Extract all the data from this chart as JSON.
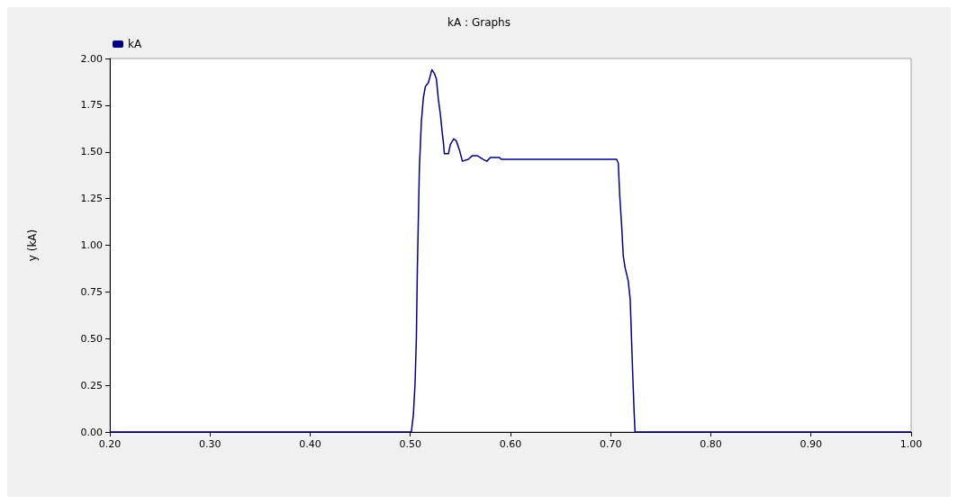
{
  "chart_data": {
    "type": "line",
    "title": "kA : Graphs",
    "ylabel": "y (kA)",
    "legend": "top left",
    "grid": false,
    "marker": "none",
    "line_style": "solid",
    "xlim": [
      0.2,
      1.0
    ],
    "xticks": [
      {
        "value": 0.2,
        "label": "0.20"
      },
      {
        "value": 0.3,
        "label": "0.30"
      },
      {
        "value": 0.4,
        "label": "0.40"
      },
      {
        "value": 0.5,
        "label": "0.50"
      },
      {
        "value": 0.6,
        "label": "0.60"
      },
      {
        "value": 0.7,
        "label": "0.70"
      },
      {
        "value": 0.8,
        "label": "0.80"
      },
      {
        "value": 0.9,
        "label": "0.90"
      },
      {
        "value": 1.0,
        "label": "1.00"
      }
    ],
    "ylim": [
      0,
      2
    ],
    "yticks": [
      {
        "value": 0,
        "label": "0.00"
      },
      {
        "value": 0.25,
        "label": "0.25"
      },
      {
        "value": 0.5,
        "label": "0.50"
      },
      {
        "value": 0.75,
        "label": "0.75"
      },
      {
        "value": 1,
        "label": "1.00"
      },
      {
        "value": 1.25,
        "label": "1.25"
      },
      {
        "value": 1.5,
        "label": "1.50"
      },
      {
        "value": 1.75,
        "label": "1.75"
      },
      {
        "value": 2,
        "label": "2.00"
      }
    ],
    "series": [
      {
        "name": "kA",
        "color": "#000080",
        "x": [
          0.2,
          0.501,
          0.503,
          0.5047,
          0.506,
          0.507,
          0.509,
          0.511,
          0.513,
          0.515,
          0.518,
          0.52,
          0.5215,
          0.524,
          0.526,
          0.528,
          0.53,
          0.5317,
          0.533,
          0.534,
          0.538,
          0.54,
          0.5434,
          0.5458,
          0.549,
          0.552,
          0.5578,
          0.562,
          0.5667,
          0.5728,
          0.5763,
          0.58,
          0.589,
          0.5907,
          0.706,
          0.7076,
          0.709,
          0.711,
          0.7126,
          0.7144,
          0.7175,
          0.7195,
          0.722,
          0.7234,
          0.7243,
          1.0
        ],
        "values": [
          0,
          0,
          0.09,
          0.26,
          0.5,
          0.87,
          1.41,
          1.66,
          1.79,
          1.85,
          1.87,
          1.91,
          1.94,
          1.92,
          1.89,
          1.78,
          1.7,
          1.61,
          1.55,
          1.49,
          1.49,
          1.54,
          1.57,
          1.56,
          1.51,
          1.45,
          1.46,
          1.48,
          1.48,
          1.46,
          1.45,
          1.47,
          1.47,
          1.46,
          1.46,
          1.44,
          1.27,
          1.1,
          0.94,
          0.88,
          0.81,
          0.71,
          0.31,
          0.11,
          0,
          0
        ]
      }
    ]
  }
}
